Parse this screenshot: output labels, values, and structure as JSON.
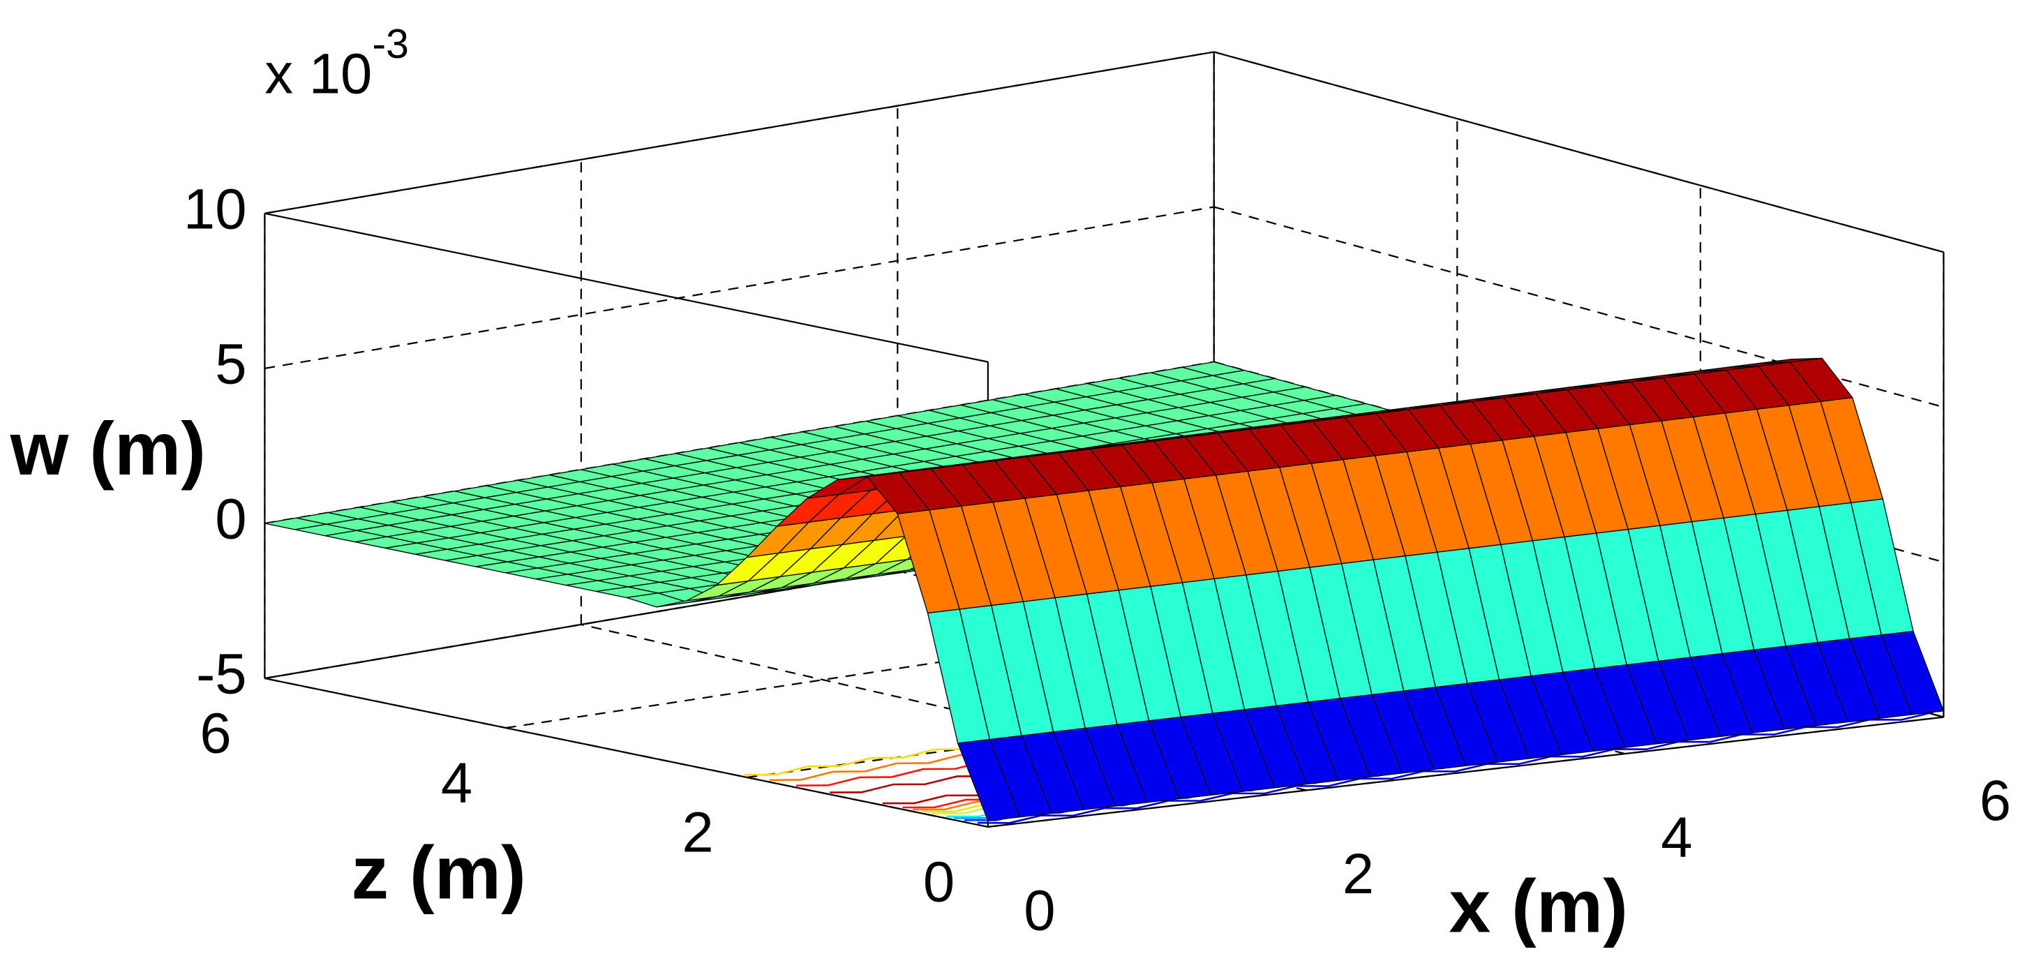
{
  "chart_data": {
    "type": "surface",
    "xlabel": "x (m)",
    "zlabel": "z (m)",
    "wlabel": "w (m)",
    "w_multiplier": {
      "base": "x 10",
      "exponent": "-3"
    },
    "xlim": [
      0,
      6
    ],
    "xticks": [
      0,
      2,
      4,
      6
    ],
    "zlim": [
      0,
      6
    ],
    "zticks": [
      0,
      2,
      4,
      6
    ],
    "wlim": [
      -5,
      10
    ],
    "wticks": [
      -5,
      0,
      5,
      10
    ],
    "grid": true,
    "colormap": "jet",
    "x": [
      0,
      0.2,
      0.4,
      0.6,
      0.8,
      1,
      1.2,
      1.4,
      1.6,
      1.8,
      2,
      2.2,
      2.4,
      2.6,
      2.8,
      3,
      3.2,
      3.4,
      3.6,
      3.8,
      4,
      4.2,
      4.4,
      4.6,
      4.8,
      5,
      5.2,
      5.4,
      5.6,
      5.8,
      6
    ],
    "z": [
      0,
      0.25,
      0.5,
      0.75,
      1,
      1.25,
      1.5,
      1.75,
      2,
      2.25,
      2.5,
      2.75,
      3,
      3.25,
      3.5,
      3.75,
      4,
      4.25,
      4.5,
      4.75,
      5,
      5.25,
      5.5,
      5.75,
      6
    ],
    "w": [
      -4.8,
      -2.5,
      1.5,
      4.5,
      5.5,
      5.2,
      4.4,
      3.3,
      2.1,
      1.0,
      0.3,
      -0.1,
      0,
      0,
      0,
      0,
      0,
      0,
      0,
      0,
      0,
      0,
      0,
      0,
      0
    ],
    "contour_levels": [
      -4,
      -3,
      -2,
      -1,
      1,
      2,
      3,
      4,
      5
    ]
  }
}
